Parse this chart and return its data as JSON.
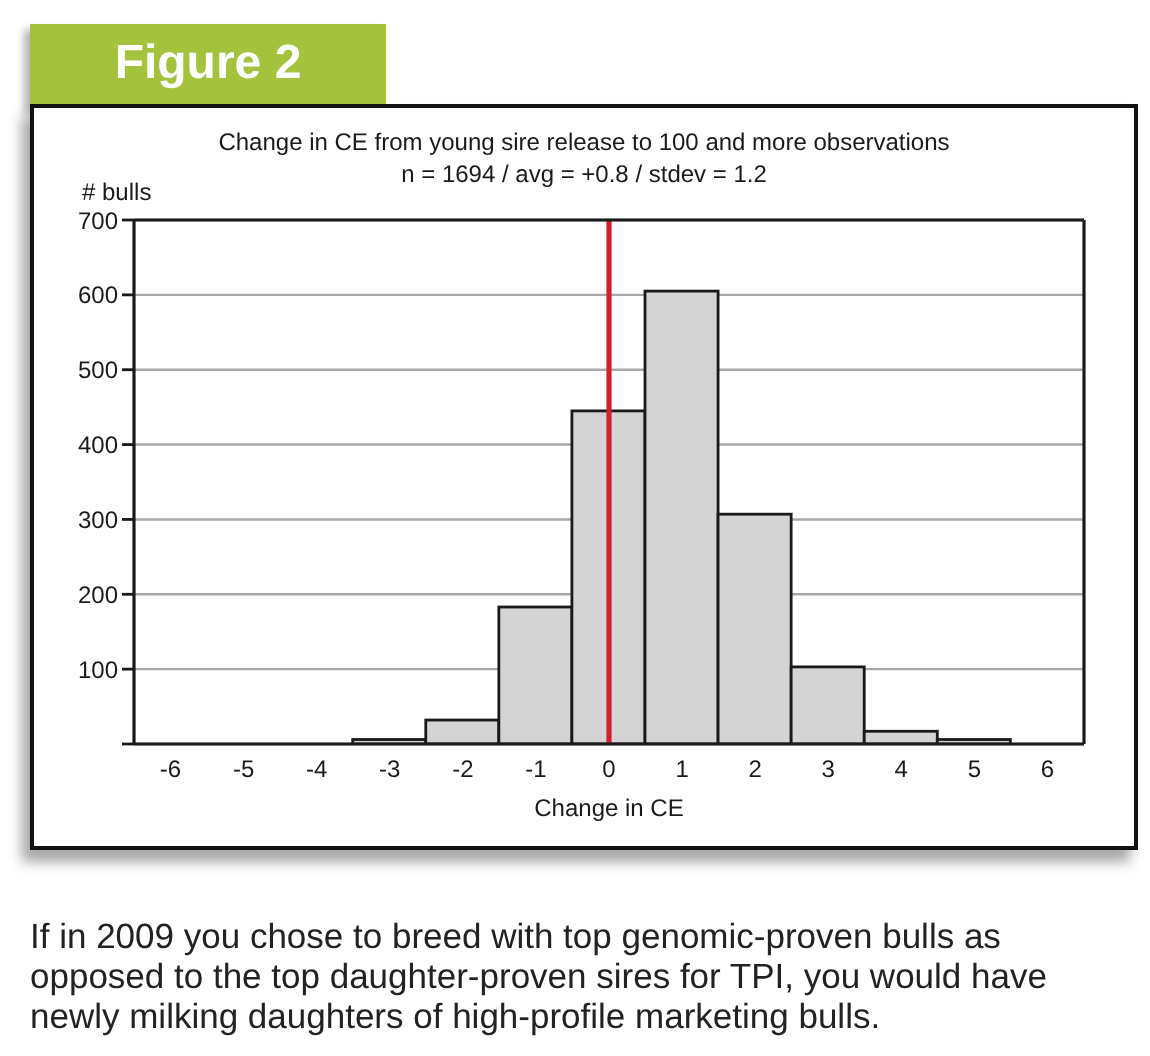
{
  "chart_data": {
    "type": "histogram",
    "title": "Change in CE from young sire release to 100 and more observations",
    "subtitle": "n = 1694 / avg = +0.8 / stdev = 1.2",
    "xlabel": "Change in CE",
    "ylabel": "# bulls",
    "annotations": [
      "Figure 2",
      "If in 2009 you chose to breed with top genomic-proven bulls as opposed to the top daughter-proven sires for TPI, you would have newly milking daughters of high-profile marketing bulls."
    ],
    "bins": [
      -3.5,
      -2.5,
      -1.5,
      -0.5,
      0.5,
      1.5,
      2.5,
      3.5,
      4.5,
      5.5
    ],
    "values": [
      6,
      32,
      183,
      445,
      605,
      307,
      103,
      17,
      6
    ],
    "color": "#d4d4d4",
    "xlim": [
      -6.5,
      6.5
    ],
    "xticks": [
      -6,
      -5,
      -4,
      -3,
      -2,
      -1,
      0,
      1,
      2,
      3,
      4,
      5,
      6
    ],
    "ylim": [
      0,
      700
    ],
    "yticks": [
      {
        "value": 0,
        "label": null
      },
      100,
      200,
      300,
      400,
      500,
      600,
      700
    ],
    "grid": "y",
    "ref_lines": [
      {
        "axis": "x",
        "value": 0,
        "color": "#d0202c"
      }
    ]
  }
}
